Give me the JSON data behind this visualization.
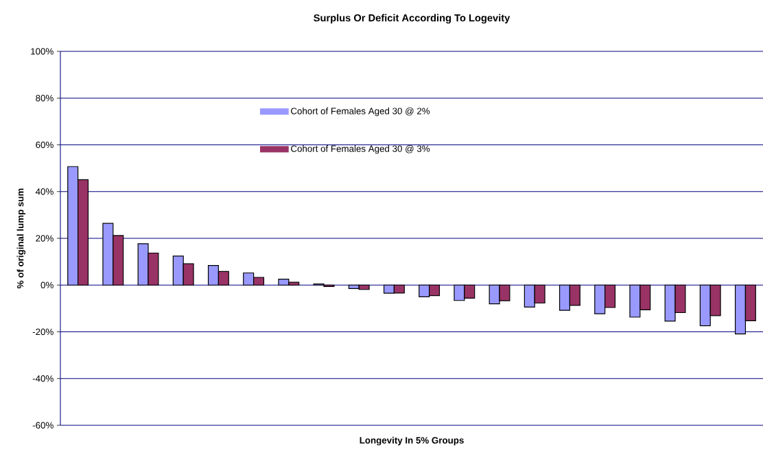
{
  "chart_data": {
    "type": "bar",
    "title": "Surplus Or Deficit According To Logevity",
    "xlabel": "Longevity In 5% Groups",
    "ylabel": "% of original lump sum",
    "categories": [
      null,
      null,
      null,
      null,
      null,
      null,
      null,
      null,
      null,
      null,
      null,
      null,
      null,
      null,
      null,
      null,
      null,
      null,
      null,
      null
    ],
    "series": [
      {
        "name": "Cohort of Females Aged 30 @ 2%",
        "color": "#9999ff",
        "values": [
          50.7,
          26.4,
          17.7,
          12.4,
          8.4,
          5.2,
          2.5,
          0.5,
          -1.5,
          -3.5,
          -5.0,
          -6.6,
          -8.0,
          -9.4,
          -10.8,
          -12.3,
          -13.7,
          -15.4,
          -17.4,
          -20.9
        ]
      },
      {
        "name": "Cohort of Females Aged 30 @ 3%",
        "color": "#993366",
        "values": [
          45.1,
          21.2,
          13.7,
          9.1,
          5.8,
          3.3,
          1.2,
          -0.6,
          -1.9,
          -3.4,
          -4.5,
          -5.6,
          -6.7,
          -7.7,
          -8.7,
          -9.6,
          -10.6,
          -11.8,
          -13.1,
          -15.3
        ]
      }
    ],
    "ylim": [
      -60,
      100
    ],
    "yticks": [
      {
        "value": -60,
        "label": "-60%"
      },
      {
        "value": -40,
        "label": "-40%"
      },
      {
        "value": -20,
        "label": "-20%"
      },
      {
        "value": 0,
        "label": "0%"
      },
      {
        "value": 20,
        "label": "20%"
      },
      {
        "value": 40,
        "label": "40%"
      },
      {
        "value": 60,
        "label": "60%"
      },
      {
        "value": 80,
        "label": "80%"
      },
      {
        "value": 100,
        "label": "100%"
      }
    ],
    "grid": "y",
    "legend": "top"
  }
}
